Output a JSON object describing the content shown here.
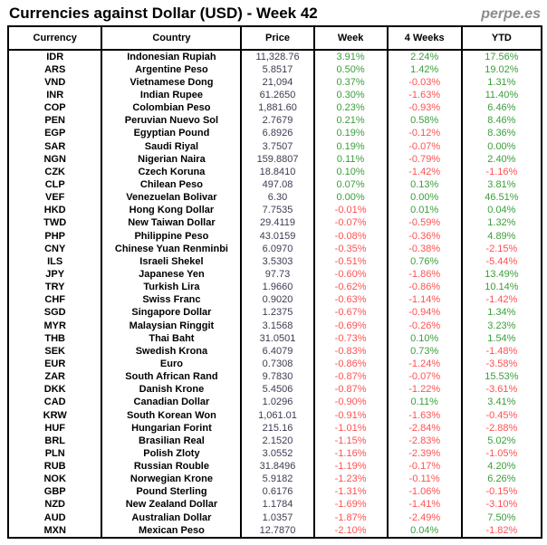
{
  "brand": "perpe.es",
  "colors": {
    "positive": "#3c9e3c",
    "negative": "#ff5151",
    "price": "#3c3c52",
    "brand": "#8c8c8c",
    "border": "#000000"
  },
  "chart_data": {
    "type": "table",
    "title": "Currencies against Dollar (USD) - Week 42",
    "columns": [
      "Currency",
      "Country",
      "Price",
      "Week",
      "4 Weeks",
      "YTD"
    ],
    "rows": [
      [
        "IDR",
        "Indonesian Rupiah",
        "11,328.76",
        "3.91%",
        "2.24%",
        "17.56%"
      ],
      [
        "ARS",
        "Argentine Peso",
        "5.8517",
        "0.50%",
        "1.42%",
        "19.02%"
      ],
      [
        "VND",
        "Vietnamese Dong",
        "21,094",
        "0.37%",
        "-0.03%",
        "1.31%"
      ],
      [
        "INR",
        "Indian Rupee",
        "61.2650",
        "0.30%",
        "-1.63%",
        "11.40%"
      ],
      [
        "COP",
        "Colombian Peso",
        "1,881.60",
        "0.23%",
        "-0.93%",
        "6.46%"
      ],
      [
        "PEN",
        "Peruvian Nuevo Sol",
        "2.7679",
        "0.21%",
        "0.58%",
        "8.46%"
      ],
      [
        "EGP",
        "Egyptian Pound",
        "6.8926",
        "0.19%",
        "-0.12%",
        "8.36%"
      ],
      [
        "SAR",
        "Saudi Riyal",
        "3.7507",
        "0.19%",
        "-0.07%",
        "0.00%"
      ],
      [
        "NGN",
        "Nigerian Naira",
        "159.8807",
        "0.11%",
        "-0.79%",
        "2.40%"
      ],
      [
        "CZK",
        "Czech Koruna",
        "18.8410",
        "0.10%",
        "-1.42%",
        "-1.16%"
      ],
      [
        "CLP",
        "Chilean Peso",
        "497.08",
        "0.07%",
        "0.13%",
        "3.81%"
      ],
      [
        "VEF",
        "Venezuelan Bolivar",
        "6.30",
        "0.00%",
        "0.00%",
        "46.51%"
      ],
      [
        "HKD",
        "Hong Kong Dollar",
        "7.7535",
        "-0.01%",
        "0.01%",
        "0.04%"
      ],
      [
        "TWD",
        "New Taiwan Dollar",
        "29.4119",
        "-0.07%",
        "-0.59%",
        "1.32%"
      ],
      [
        "PHP",
        "Philippine Peso",
        "43.0159",
        "-0.08%",
        "-0.36%",
        "4.89%"
      ],
      [
        "CNY",
        "Chinese Yuan Renminbi",
        "6.0970",
        "-0.35%",
        "-0.38%",
        "-2.15%"
      ],
      [
        "ILS",
        "Israeli Shekel",
        "3.5303",
        "-0.51%",
        "0.76%",
        "-5.44%"
      ],
      [
        "JPY",
        "Japanese Yen",
        "97.73",
        "-0.60%",
        "-1.86%",
        "13.49%"
      ],
      [
        "TRY",
        "Turkish Lira",
        "1.9660",
        "-0.62%",
        "-0.86%",
        "10.14%"
      ],
      [
        "CHF",
        "Swiss Franc",
        "0.9020",
        "-0.63%",
        "-1.14%",
        "-1.42%"
      ],
      [
        "SGD",
        "Singapore Dollar",
        "1.2375",
        "-0.67%",
        "-0.94%",
        "1.34%"
      ],
      [
        "MYR",
        "Malaysian Ringgit",
        "3.1568",
        "-0.69%",
        "-0.26%",
        "3.23%"
      ],
      [
        "THB",
        "Thai Baht",
        "31.0501",
        "-0.73%",
        "0.10%",
        "1.54%"
      ],
      [
        "SEK",
        "Swedish Krona",
        "6.4079",
        "-0.83%",
        "0.73%",
        "-1.48%"
      ],
      [
        "EUR",
        "Euro",
        "0.7308",
        "-0.86%",
        "-1.24%",
        "-3.58%"
      ],
      [
        "ZAR",
        "South African Rand",
        "9.7830",
        "-0.87%",
        "-0.07%",
        "15.53%"
      ],
      [
        "DKK",
        "Danish Krone",
        "5.4506",
        "-0.87%",
        "-1.22%",
        "-3.61%"
      ],
      [
        "CAD",
        "Canadian Dollar",
        "1.0296",
        "-0.90%",
        "0.11%",
        "3.41%"
      ],
      [
        "KRW",
        "South Korean Won",
        "1,061.01",
        "-0.91%",
        "-1.63%",
        "-0.45%"
      ],
      [
        "HUF",
        "Hungarian Forint",
        "215.16",
        "-1.01%",
        "-2.84%",
        "-2.88%"
      ],
      [
        "BRL",
        "Brasilian Real",
        "2.1520",
        "-1.15%",
        "-2.83%",
        "5.02%"
      ],
      [
        "PLN",
        "Polish Zloty",
        "3.0552",
        "-1.16%",
        "-2.39%",
        "-1.05%"
      ],
      [
        "RUB",
        "Russian Rouble",
        "31.8496",
        "-1.19%",
        "-0.17%",
        "4.20%"
      ],
      [
        "NOK",
        "Norwegian Krone",
        "5.9182",
        "-1.23%",
        "-0.11%",
        "6.26%"
      ],
      [
        "GBP",
        "Pound Sterling",
        "0.6176",
        "-1.31%",
        "-1.06%",
        "-0.15%"
      ],
      [
        "NZD",
        "New Zealand Dollar",
        "1.1784",
        "-1.69%",
        "-1.41%",
        "-3.10%"
      ],
      [
        "AUD",
        "Australian Dollar",
        "1.0357",
        "-1.87%",
        "-2.49%",
        "7.50%"
      ],
      [
        "MXN",
        "Mexican Peso",
        "12.7870",
        "-2.10%",
        "0.04%",
        "-1.82%"
      ]
    ]
  }
}
